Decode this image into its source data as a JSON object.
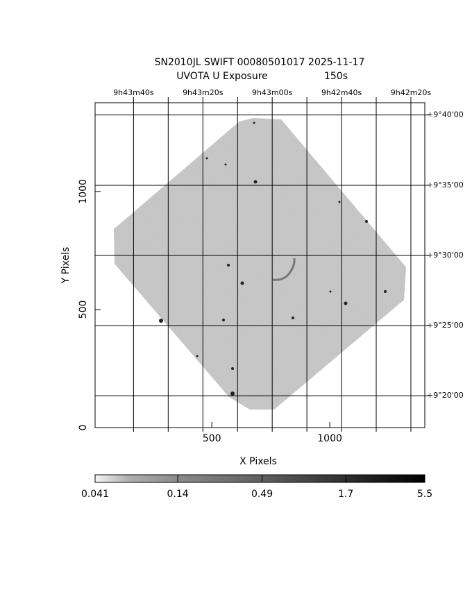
{
  "chart_data": {
    "type": "image",
    "title": "SN2010JL SWIFT 00080501017 2025-11-17",
    "subtitle": "UVOTA U Exposure",
    "exposure": "150s",
    "xlabel": "X Pixels",
    "ylabel": "Y Pixels",
    "xlim": [
      5,
      1403
    ],
    "ylim": [
      0,
      1376
    ],
    "xticks": [
      500,
      1000
    ],
    "yticks": [
      0,
      500,
      1000
    ],
    "x2ticks": [
      {
        "value": 168,
        "label": "9h43m40s"
      },
      {
        "value": 315,
        "label": null
      },
      {
        "value": 462,
        "label": "9h43m20s"
      },
      {
        "value": 609,
        "label": null
      },
      {
        "value": 756,
        "label": "9h43m00s"
      },
      {
        "value": 903,
        "label": null
      },
      {
        "value": 1050,
        "label": "9h42m40s"
      },
      {
        "value": 1197,
        "label": null
      },
      {
        "value": 1344,
        "label": "9h42m20s"
      }
    ],
    "y2ticks": [
      {
        "value": 1324,
        "label": "+9°40'00"
      },
      {
        "value": 1026,
        "label": "+9°35'00"
      },
      {
        "value": 729,
        "label": "+9°30'00"
      },
      {
        "value": 432,
        "label": "+9°25'00"
      },
      {
        "value": 135,
        "label": "+9°20'00"
      }
    ],
    "grid": true,
    "colorbar": {
      "clim": [
        0.041,
        5.5
      ],
      "log": true,
      "ticks": [
        0.041,
        0.14,
        0.49,
        1.7,
        5.5
      ]
    }
  }
}
